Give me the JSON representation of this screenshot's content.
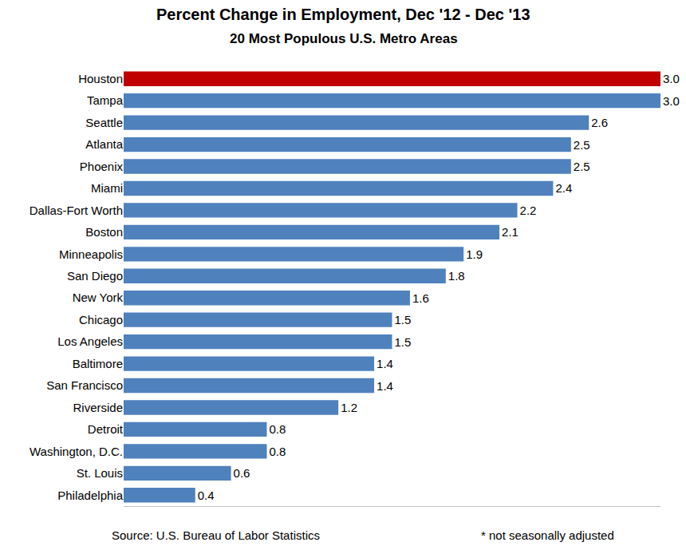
{
  "chart_data": {
    "type": "bar",
    "title": "Percent Change in Employment, Dec '12 - Dec '13",
    "subtitle": "20 Most Populous U.S. Metro Areas",
    "orientation": "horizontal",
    "categories": [
      "Houston",
      "Tampa",
      "Seattle",
      "Atlanta",
      "Phoenix",
      "Miami",
      "Dallas-Fort Worth",
      "Boston",
      "Minneapolis",
      "San Diego",
      "New York",
      "Chicago",
      "Los Angeles",
      "Baltimore",
      "San Francisco",
      "Riverside",
      "Detroit",
      "Washington, D.C.",
      "St. Louis",
      "Philadelphia"
    ],
    "values": [
      3.0,
      3.0,
      2.6,
      2.5,
      2.5,
      2.4,
      2.2,
      2.1,
      1.9,
      1.8,
      1.6,
      1.5,
      1.5,
      1.4,
      1.4,
      1.2,
      0.8,
      0.8,
      0.6,
      0.4
    ],
    "value_labels": [
      "3.0",
      "3.0",
      "2.6",
      "2.5",
      "2.5",
      "2.4",
      "2.2",
      "2.1",
      "1.9",
      "1.8",
      "1.6",
      "1.5",
      "1.5",
      "1.4",
      "1.4",
      "1.2",
      "0.8",
      "0.8",
      "0.6",
      "0.4"
    ],
    "colors": [
      "#C00000",
      "#4F81BD",
      "#4F81BD",
      "#4F81BD",
      "#4F81BD",
      "#4F81BD",
      "#4F81BD",
      "#4F81BD",
      "#4F81BD",
      "#4F81BD",
      "#4F81BD",
      "#4F81BD",
      "#4F81BD",
      "#4F81BD",
      "#4F81BD",
      "#4F81BD",
      "#4F81BD",
      "#4F81BD",
      "#4F81BD",
      "#4F81BD"
    ],
    "xlim": [
      0,
      3.0
    ],
    "data_labels": true,
    "tick_labels": "y",
    "grid": false,
    "annotations": [
      "Source: U.S. Bureau of Labor Statistics",
      "* not seasonally adjusted"
    ]
  }
}
